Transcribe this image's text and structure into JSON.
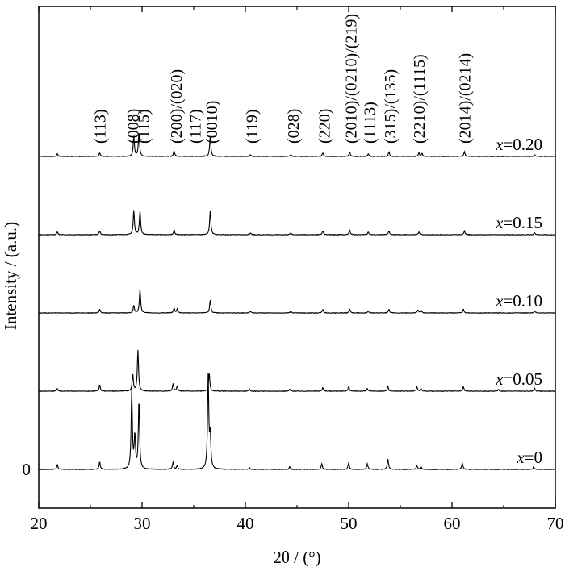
{
  "chart_data": {
    "type": "line",
    "xlabel": "2θ / (°)",
    "ylabel": "Intensity / (a.u.)",
    "xlim": [
      20,
      70
    ],
    "x_ticks": [
      "20",
      "30",
      "40",
      "50",
      "60",
      "70"
    ],
    "y_ticks": [
      "0"
    ],
    "grid": false,
    "series": [
      {
        "name": "x=0",
        "var": "x",
        "value": "=0",
        "offset": 0,
        "peaks": [
          [
            21.8,
            0.05
          ],
          [
            25.9,
            0.08
          ],
          [
            29.0,
            0.85
          ],
          [
            29.3,
            0.35
          ],
          [
            29.7,
            0.74
          ],
          [
            33.0,
            0.08
          ],
          [
            33.4,
            0.04
          ],
          [
            36.4,
            1.0
          ],
          [
            36.6,
            0.35
          ],
          [
            40.4,
            0.02
          ],
          [
            44.3,
            0.03
          ],
          [
            47.4,
            0.06
          ],
          [
            50.0,
            0.07
          ],
          [
            51.8,
            0.06
          ],
          [
            53.8,
            0.11
          ],
          [
            56.6,
            0.04
          ],
          [
            57.0,
            0.03
          ],
          [
            61.0,
            0.07
          ],
          [
            67.9,
            0.03
          ]
        ]
      },
      {
        "name": "x=0.05",
        "var": "x",
        "value": "=0.05",
        "offset": 1,
        "peaks": [
          [
            21.8,
            0.03
          ],
          [
            25.9,
            0.07
          ],
          [
            29.1,
            0.18
          ],
          [
            29.6,
            0.44
          ],
          [
            33.0,
            0.08
          ],
          [
            33.4,
            0.05
          ],
          [
            36.5,
            0.2
          ],
          [
            40.4,
            0.02
          ],
          [
            44.3,
            0.02
          ],
          [
            47.5,
            0.04
          ],
          [
            50.0,
            0.05
          ],
          [
            51.8,
            0.03
          ],
          [
            53.8,
            0.05
          ],
          [
            56.6,
            0.05
          ],
          [
            57.0,
            0.03
          ],
          [
            61.1,
            0.05
          ],
          [
            64.5,
            0.02
          ],
          [
            68.0,
            0.03
          ]
        ]
      },
      {
        "name": "x=0.10",
        "var": "x",
        "value": "=0.10",
        "offset": 2,
        "peaks": [
          [
            25.9,
            0.04
          ],
          [
            29.2,
            0.08
          ],
          [
            29.8,
            0.26
          ],
          [
            33.1,
            0.05
          ],
          [
            33.4,
            0.04
          ],
          [
            36.6,
            0.14
          ],
          [
            40.5,
            0.02
          ],
          [
            44.4,
            0.02
          ],
          [
            47.5,
            0.04
          ],
          [
            50.1,
            0.04
          ],
          [
            51.9,
            0.02
          ],
          [
            53.9,
            0.04
          ],
          [
            56.7,
            0.03
          ],
          [
            57.0,
            0.03
          ],
          [
            61.1,
            0.04
          ],
          [
            68.0,
            0.02
          ]
        ]
      },
      {
        "name": "x=0.15",
        "var": "x",
        "value": "=0.15",
        "offset": 3,
        "peaks": [
          [
            21.8,
            0.03
          ],
          [
            25.9,
            0.04
          ],
          [
            29.2,
            0.26
          ],
          [
            29.8,
            0.26
          ],
          [
            33.1,
            0.05
          ],
          [
            36.6,
            0.26
          ],
          [
            40.5,
            0.02
          ],
          [
            44.4,
            0.02
          ],
          [
            47.5,
            0.04
          ],
          [
            50.1,
            0.05
          ],
          [
            51.9,
            0.03
          ],
          [
            53.9,
            0.04
          ],
          [
            56.8,
            0.03
          ],
          [
            61.2,
            0.04
          ],
          [
            68.0,
            0.02
          ]
        ]
      },
      {
        "name": "x=0.20",
        "var": "x",
        "value": "=0.20",
        "offset": 4,
        "peaks": [
          [
            21.8,
            0.03
          ],
          [
            25.9,
            0.04
          ],
          [
            29.2,
            0.22
          ],
          [
            29.7,
            0.26
          ],
          [
            33.1,
            0.06
          ],
          [
            36.6,
            0.22
          ],
          [
            40.5,
            0.02
          ],
          [
            44.4,
            0.02
          ],
          [
            47.5,
            0.04
          ],
          [
            50.1,
            0.05
          ],
          [
            51.9,
            0.03
          ],
          [
            53.9,
            0.05
          ],
          [
            56.8,
            0.04
          ],
          [
            57.1,
            0.03
          ],
          [
            61.2,
            0.05
          ],
          [
            68.0,
            0.02
          ]
        ]
      }
    ],
    "annotations": [
      {
        "text": "(113)",
        "x": 25.9
      },
      {
        "text": "(008)",
        "x": 29.1
      },
      {
        "text": "(115)",
        "x": 30.1
      },
      {
        "text": "(200)/(020)",
        "x": 33.3
      },
      {
        "text": "(117)",
        "x": 35.1
      },
      {
        "text": "(0010)",
        "x": 36.7
      },
      {
        "text": "(119)",
        "x": 40.6
      },
      {
        "text": "(028)",
        "x": 44.6
      },
      {
        "text": "(220)",
        "x": 47.6
      },
      {
        "text": "(2010)/(0210)/(219)",
        "x": 50.2
      },
      {
        "text": "(1113)",
        "x": 52.0
      },
      {
        "text": "(315)/(135)",
        "x": 54.0
      },
      {
        "text": "(2210)/(1115)",
        "x": 56.8
      },
      {
        "text": "(2014)/(0214)",
        "x": 61.2
      }
    ]
  }
}
